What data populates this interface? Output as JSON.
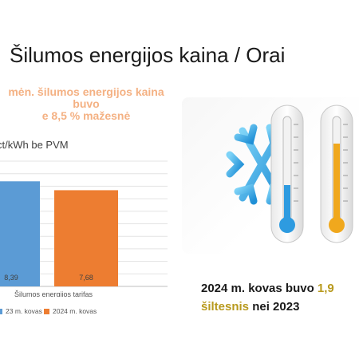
{
  "slide": {
    "title": "Šilumos energijos kaina / Orai",
    "headline": [
      "mėn. šilumos energijos kaina",
      "buvo",
      "e 8,5 % mažesnė"
    ],
    "unit_label": "ct/kWh be PVM",
    "weather_line1_pre": "2024 m. kovas buvo ",
    "weather_line1_value": "1,9",
    "weather_line2_gold": "šiltesnis",
    "weather_line2_rest": " nei 2023"
  },
  "colors": {
    "series_2023": "#5b9bd5",
    "series_2024": "#ed7d31",
    "headline": "#f4b183",
    "accent_gold": "#b89a1e"
  },
  "illustration": {
    "icons": [
      "snowflake-icon",
      "cold-thermometer-icon",
      "warm-thermometer-icon"
    ]
  },
  "chart_data": {
    "type": "bar",
    "categories": [
      "Šilumos energijos tarifas"
    ],
    "series": [
      {
        "name": "23 m. kovas",
        "values": [
          8.39
        ],
        "labels": [
          "8,39"
        ]
      },
      {
        "name": "2024 m. kovas",
        "values": [
          7.68
        ],
        "labels": [
          "7,68"
        ]
      }
    ],
    "ylim": [
      0,
      10
    ],
    "grid": true,
    "legend": "bottom"
  }
}
